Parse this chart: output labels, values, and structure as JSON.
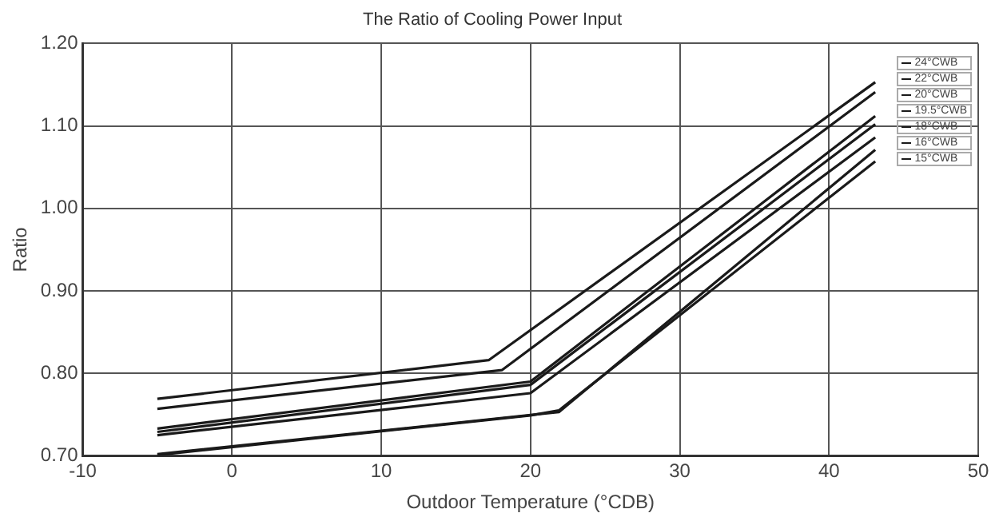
{
  "chart_data": {
    "type": "line",
    "title": "The Ratio of Cooling Power Input",
    "xlabel": "Outdoor Temperature (°CDB)",
    "ylabel": "Ratio",
    "xlim": [
      -10,
      50
    ],
    "xticks": [
      -10,
      0,
      10,
      20,
      30,
      40,
      50
    ],
    "ylim": [
      0.7,
      1.2
    ],
    "yticks": [
      {
        "value": 0.7,
        "label": "0.70"
      },
      {
        "value": 0.8,
        "label": "0.80"
      },
      {
        "value": 0.9,
        "label": "0.90"
      },
      {
        "value": 1.0,
        "label": "1.00"
      },
      {
        "value": 1.1,
        "label": "1.10"
      },
      {
        "value": 1.2,
        "label": "1.20"
      }
    ],
    "grid": true,
    "legend": "top right",
    "marker": "none",
    "line_style": "solid",
    "series": [
      {
        "name": "24°CWB",
        "color": "#1a1a1a",
        "x": [
          -5,
          17.2,
          43.1
        ],
        "values": [
          0.769,
          0.816,
          1.153
        ]
      },
      {
        "name": "22°CWB",
        "color": "#1a1a1a",
        "x": [
          -5,
          18.1,
          43.1
        ],
        "values": [
          0.757,
          0.804,
          1.141
        ]
      },
      {
        "name": "20°CWB",
        "color": "#1a1a1a",
        "x": [
          -5,
          20,
          43.1
        ],
        "values": [
          0.733,
          0.79,
          1.112
        ]
      },
      {
        "name": "19.5°CWB",
        "color": "#1a1a1a",
        "x": [
          -5,
          20,
          43.1
        ],
        "values": [
          0.729,
          0.786,
          1.102
        ]
      },
      {
        "name": "18°CWB",
        "color": "#1a1a1a",
        "x": [
          -5,
          20,
          43.1
        ],
        "values": [
          0.725,
          0.776,
          1.086
        ]
      },
      {
        "name": "16°CWB",
        "color": "#1a1a1a",
        "x": [
          -5,
          21.9,
          43.1
        ],
        "values": [
          0.702,
          0.753,
          1.071
        ]
      },
      {
        "name": "15°CWB",
        "color": "#1a1a1a",
        "x": [
          -5,
          20,
          21.9,
          43.1
        ],
        "values": [
          0.701,
          0.749,
          0.755,
          1.057
        ]
      }
    ]
  }
}
